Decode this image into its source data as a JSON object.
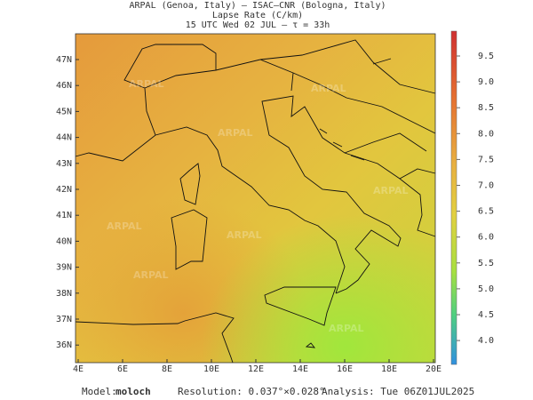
{
  "header": {
    "line1": "ARPAL (Genoa, Italy)  —  ISAC–CNR (Bologna, Italy)",
    "line2": "Lapse Rate (C/km)",
    "line3": "15 UTC Wed 02 JUL  —  τ = 33h"
  },
  "map": {
    "watermark": "ARPAL",
    "lon_labels": [
      "4E",
      "6E",
      "8E",
      "10E",
      "12E",
      "14E",
      "16E",
      "18E",
      "20E"
    ],
    "lat_labels": [
      "47N",
      "46N",
      "45N",
      "44N",
      "43N",
      "42N",
      "41N",
      "40N",
      "39N",
      "38N",
      "37N",
      "36N"
    ]
  },
  "colorbar": {
    "labels": [
      "9.5",
      "9.0",
      "8.5",
      "8.0",
      "7.5",
      "7.0",
      "6.5",
      "6.0",
      "5.5",
      "5.0",
      "4.5",
      "4.0"
    ]
  },
  "footer": {
    "model_label": "Model:",
    "model": "moloch",
    "resolution": "Resolution: 0.037°×0.028°",
    "analysis": "Analysis: Tue 06Z01JUL2025"
  }
}
